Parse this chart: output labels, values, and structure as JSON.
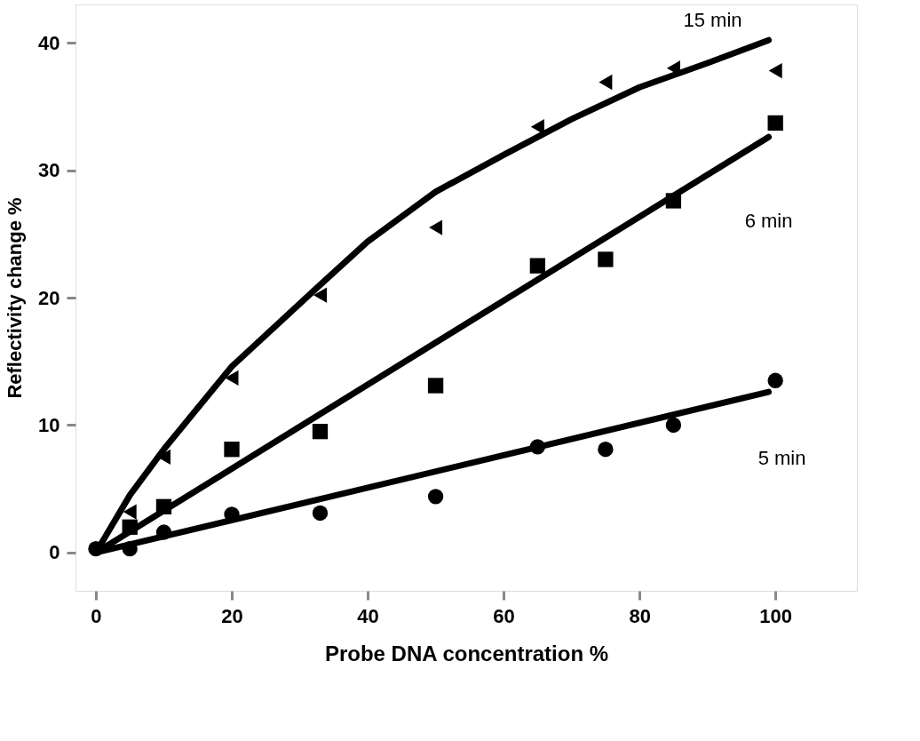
{
  "chart_data": {
    "type": "scatter",
    "xlabel": "Probe DNA concentration %",
    "ylabel": "Reflectivity change %",
    "xlim": [
      -3,
      112
    ],
    "ylim": [
      -3,
      43
    ],
    "xticks": [
      0,
      20,
      40,
      60,
      80,
      100
    ],
    "yticks": [
      0,
      10,
      20,
      30,
      40
    ],
    "series": [
      {
        "type": "line",
        "name": "5 min",
        "color": "#000000",
        "x": [
          0,
          99
        ],
        "values": [
          0,
          12.6
        ]
      },
      {
        "type": "line",
        "name": "6 min",
        "color": "#000000",
        "x": [
          0,
          99
        ],
        "values": [
          0,
          32.6
        ]
      },
      {
        "type": "line",
        "name": "15 min",
        "color": "#000000",
        "x": [
          0,
          5,
          10,
          20,
          33,
          40,
          50,
          60,
          70,
          80,
          90,
          99
        ],
        "values": [
          0,
          4.5,
          8.1,
          14.6,
          21.0,
          24.4,
          28.3,
          31.2,
          34.0,
          36.5,
          38.4,
          40.2
        ]
      },
      {
        "marker": "circle",
        "color": "#000000",
        "x": [
          0,
          5,
          10,
          20,
          33,
          50,
          65,
          75,
          85,
          100
        ],
        "values": [
          0.3,
          0.3,
          1.6,
          3.0,
          3.1,
          4.4,
          8.3,
          8.1,
          10.0,
          13.5
        ]
      },
      {
        "marker": "square",
        "color": "#000000",
        "x": [
          5,
          10,
          20,
          33,
          50,
          65,
          75,
          85,
          100
        ],
        "values": [
          2.0,
          3.6,
          8.1,
          9.5,
          13.1,
          22.5,
          23.0,
          27.6,
          33.7
        ]
      },
      {
        "marker": "triangle",
        "color": "#000000",
        "x": [
          5,
          10,
          20,
          33,
          50,
          65,
          75,
          85,
          100
        ],
        "values": [
          3.2,
          7.5,
          13.7,
          20.2,
          25.5,
          33.4,
          36.9,
          38.0,
          37.8
        ]
      }
    ]
  }
}
